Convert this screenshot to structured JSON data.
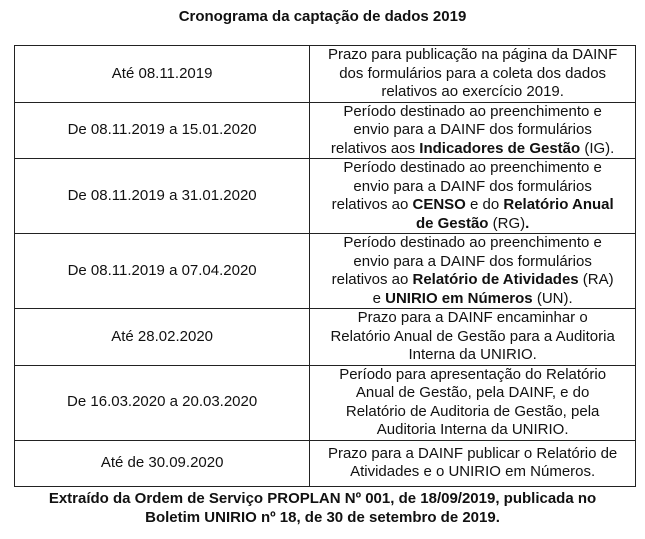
{
  "title": "Cronograma da captação de dados 2019",
  "rows": [
    {
      "date": "Até 08.11.2019",
      "lines": [
        [
          {
            "t": "Prazo para publicação na página da DAINF"
          }
        ],
        [
          {
            "t": "dos formulários para a coleta dos dados"
          }
        ],
        [
          {
            "t": "relativos ao exercício 2019."
          }
        ]
      ]
    },
    {
      "date": "De 08.11.2019 a 15.01.2020",
      "lines": [
        [
          {
            "t": "Período destinado ao preenchimento e"
          }
        ],
        [
          {
            "t": "envio para a DAINF dos formulários"
          }
        ],
        [
          {
            "t": "relativos aos "
          },
          {
            "t": "Indicadores de Gestão",
            "b": true
          },
          {
            "t": " (IG)."
          }
        ]
      ]
    },
    {
      "date": "De 08.11.2019 a 31.01.2020",
      "lines": [
        [
          {
            "t": "Período destinado ao preenchimento e"
          }
        ],
        [
          {
            "t": "envio para a DAINF dos formulários"
          }
        ],
        [
          {
            "t": "relativos ao "
          },
          {
            "t": "CENSO",
            "b": true
          },
          {
            "t": " e do "
          },
          {
            "t": "Relatório Anual",
            "b": true
          }
        ],
        [
          {
            "t": "de Gestão",
            "b": true
          },
          {
            "t": " (RG)"
          },
          {
            "t": ".",
            "b": true
          }
        ]
      ]
    },
    {
      "date": "De 08.11.2019 a 07.04.2020",
      "lines": [
        [
          {
            "t": "Período destinado ao preenchimento e"
          }
        ],
        [
          {
            "t": "envio para a DAINF dos formulários"
          }
        ],
        [
          {
            "t": "relativos ao "
          },
          {
            "t": "Relatório de Atividades",
            "b": true
          },
          {
            "t": " (RA)"
          }
        ],
        [
          {
            "t": "e "
          },
          {
            "t": "UNIRIO em Números",
            "b": true
          },
          {
            "t": " (UN)."
          }
        ]
      ]
    },
    {
      "date": "Até 28.02.2020",
      "lines": [
        [
          {
            "t": "Prazo para a DAINF encaminhar o"
          }
        ],
        [
          {
            "t": "Relatório Anual de Gestão para a Auditoria"
          }
        ],
        [
          {
            "t": "Interna da UNIRIO."
          }
        ]
      ]
    },
    {
      "date": "De 16.03.2020 a 20.03.2020",
      "lines": [
        [
          {
            "t": "Período para apresentação do Relatório"
          }
        ],
        [
          {
            "t": "Anual de Gestão, pela DAINF, e do"
          }
        ],
        [
          {
            "t": "Relatório de Auditoria de Gestão, pela"
          }
        ],
        [
          {
            "t": "Auditoria Interna da UNIRIO."
          }
        ]
      ]
    },
    {
      "date": "Até de 30.09.2020",
      "lines": [
        [
          {
            "t": "Prazo para a DAINF publicar o Relatório de"
          }
        ],
        [
          {
            "t": "Atividades e o UNIRIO em Números."
          }
        ]
      ]
    }
  ],
  "footer": {
    "line1": "Extraído da Ordem de Serviço PROPLAN Nº 001, de 18/09/2019, publicada no",
    "line2": "Boletim UNIRIO nº 18, de 30 de setembro de 2019."
  }
}
